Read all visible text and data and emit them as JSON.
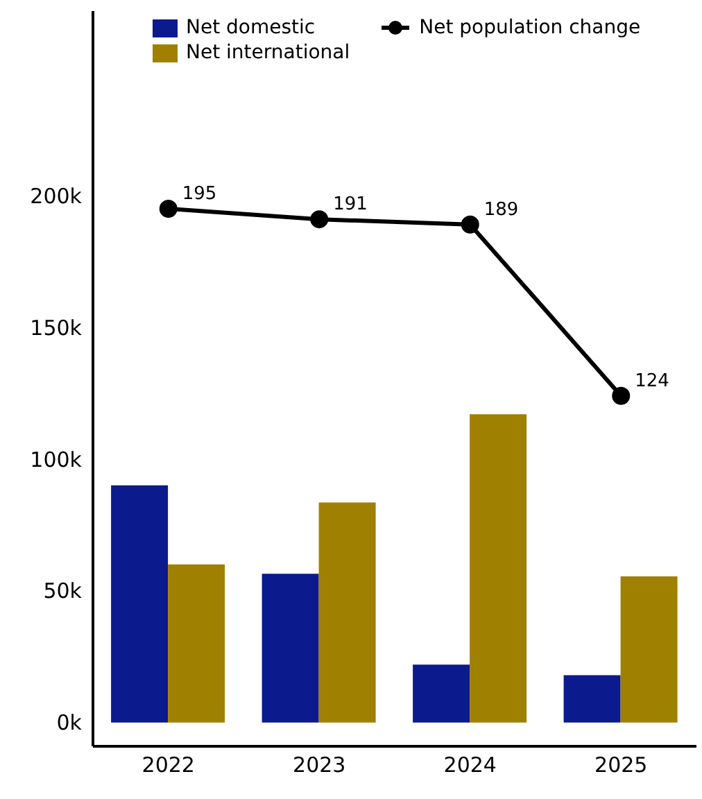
{
  "chart_data": {
    "type": "bar",
    "categories": [
      "2022",
      "2023",
      "2024",
      "2025"
    ],
    "series": [
      {
        "name": "Net domestic",
        "color": "#0b1a8c",
        "values": [
          90,
          56.5,
          22,
          18
        ]
      },
      {
        "name": "Net international",
        "color": "#a08000",
        "values": [
          60,
          83.5,
          117,
          55.5
        ]
      },
      {
        "name": "Net population change",
        "type": "line",
        "color": "#000000",
        "values": [
          195,
          191,
          189,
          124
        ],
        "value_labels": [
          "195",
          "191",
          "189",
          "124"
        ],
        "marker": "circle",
        "line_style": "solid"
      }
    ],
    "ylim": [
      -9,
      270
    ],
    "yticks": [
      {
        "value": 0,
        "label": "0k"
      },
      {
        "value": 50,
        "label": "50k"
      },
      {
        "value": 100,
        "label": "100k"
      },
      {
        "value": 150,
        "label": "150k"
      },
      {
        "value": 200,
        "label": "200k"
      }
    ],
    "grid": false,
    "legend": "top"
  }
}
